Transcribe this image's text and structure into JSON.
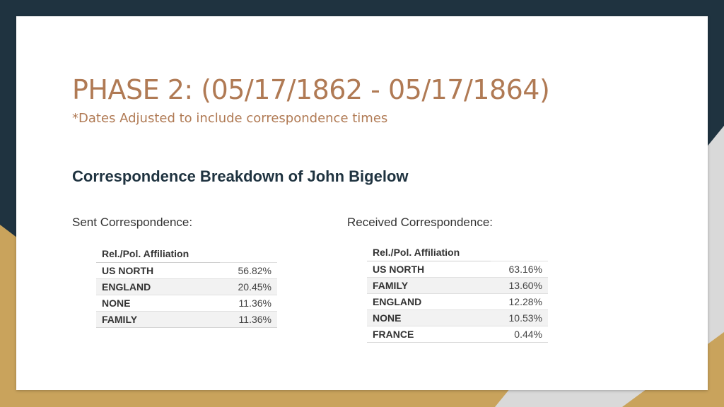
{
  "colors": {
    "background_dark": "#1f3340",
    "accent_gold": "#c9a35c",
    "title_color": "#b07a54",
    "heading_color": "#1f3340"
  },
  "slide": {
    "title": "PHASE 2: (05/17/1862 - 05/17/1864)",
    "subtitle": "*Dates Adjusted to include correspondence times",
    "heading": "Correspondence Breakdown of John Bigelow"
  },
  "sent": {
    "label": "Sent Correspondence:",
    "column_header": "Rel./Pol. Affiliation",
    "rows": [
      {
        "category": "US NORTH",
        "percent": "56.82%"
      },
      {
        "category": "ENGLAND",
        "percent": "20.45%"
      },
      {
        "category": "NONE",
        "percent": "11.36%"
      },
      {
        "category": "FAMILY",
        "percent": "11.36%"
      }
    ]
  },
  "received": {
    "label": "Received Correspondence:",
    "column_header": "Rel./Pol. Affiliation",
    "rows": [
      {
        "category": "US NORTH",
        "percent": "63.16%"
      },
      {
        "category": "FAMILY",
        "percent": "13.60%"
      },
      {
        "category": "ENGLAND",
        "percent": "12.28%"
      },
      {
        "category": "NONE",
        "percent": "10.53%"
      },
      {
        "category": "FRANCE",
        "percent": "0.44%"
      }
    ]
  }
}
